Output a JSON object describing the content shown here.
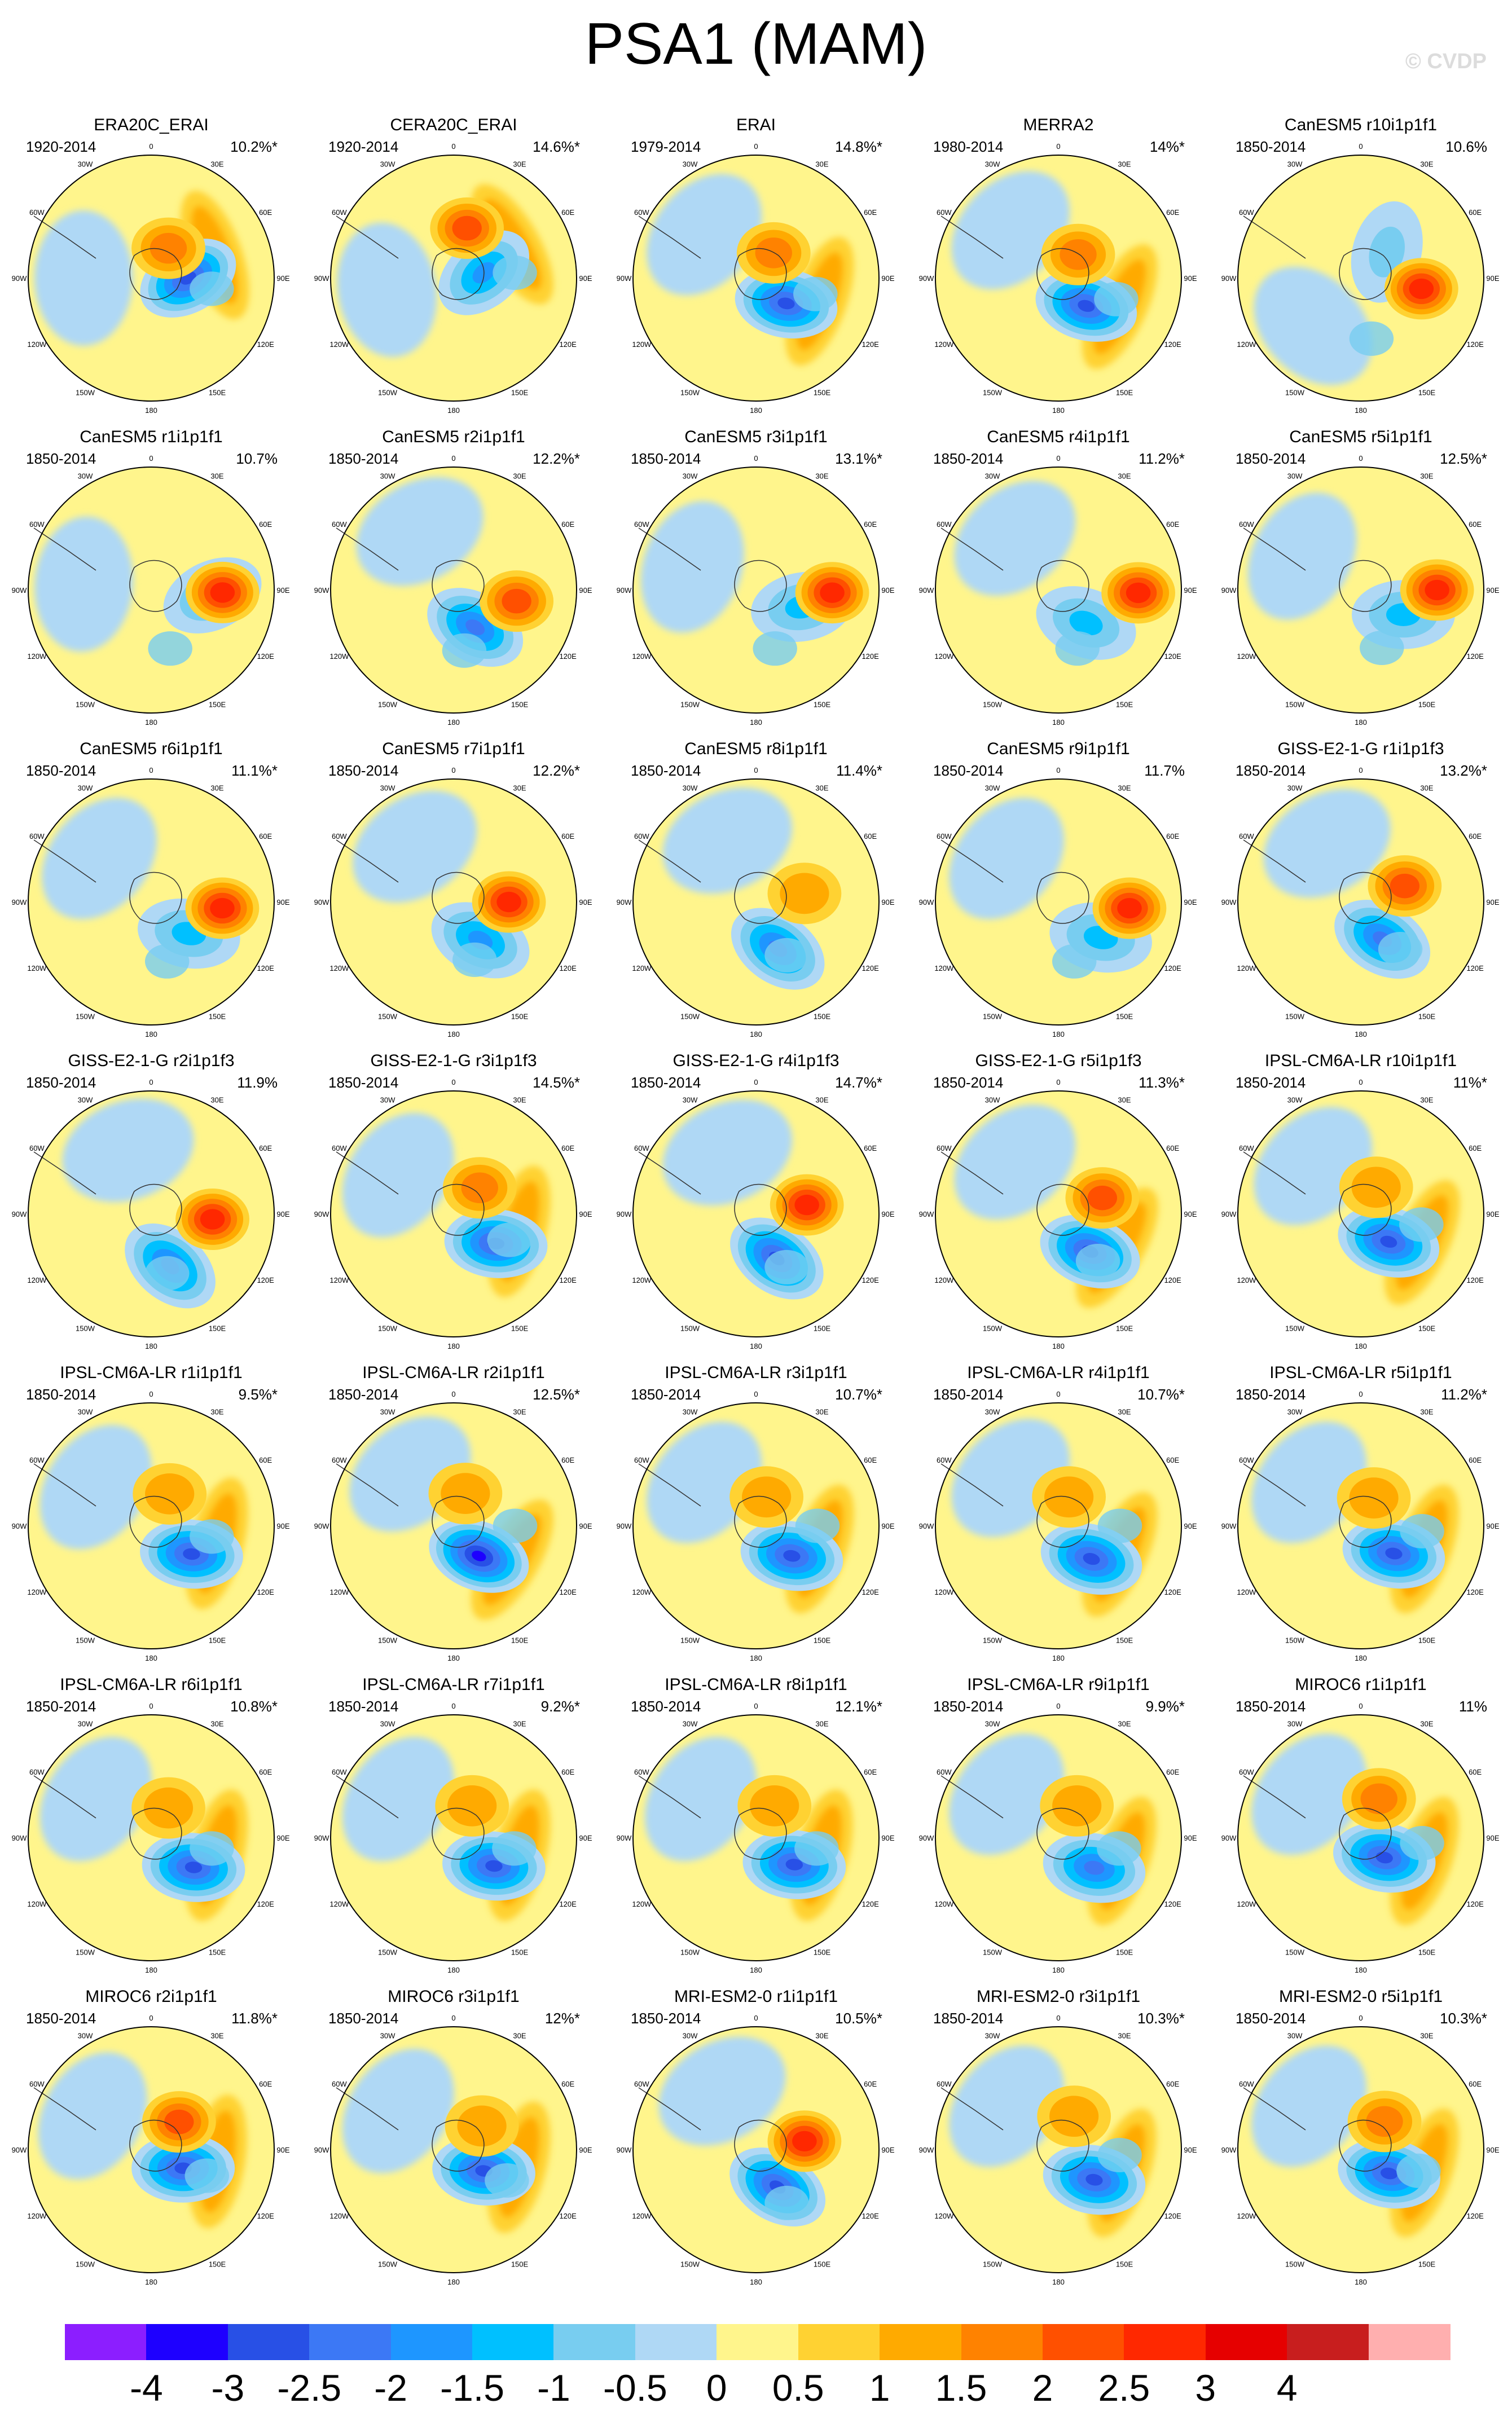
{
  "title": "PSA1 (MAM)",
  "copyright": "© CVDP",
  "map_labels": {
    "top": "0",
    "bottom": "180",
    "left_upper": "60W",
    "left_mid": "90W",
    "left_lower": "120W",
    "right_upper": "60E",
    "right_mid": "90E",
    "right_lower": "120E",
    "top_left": "30W",
    "top_right": "30E",
    "bottom_left": "150W",
    "bottom_right": "150E"
  },
  "panels": [
    {
      "title": "ERA20C_ERAI",
      "years": "1920-2014",
      "pct": "10.2%*",
      "lowA": 90,
      "lowR": 0.3,
      "lowI": 0.85,
      "hiA": 30,
      "hiR": 0.28,
      "hiI": 0.55,
      "arc": true
    },
    {
      "title": "CERA20C_ERAI",
      "years": "1920-2014",
      "pct": "14.6%*",
      "lowA": 80,
      "lowR": 0.25,
      "lowI": 0.55,
      "hiA": 15,
      "hiR": 0.42,
      "hiI": 0.7,
      "arc": true
    },
    {
      "title": "ERAI",
      "years": "1979-2014",
      "pct": "14.8%*",
      "lowA": 130,
      "lowR": 0.32,
      "lowI": 0.9,
      "hiA": 35,
      "hiR": 0.25,
      "hiI": 0.55,
      "arc": true
    },
    {
      "title": "MERRA2",
      "years": "1980-2014",
      "pct": "14%*",
      "lowA": 135,
      "lowR": 0.32,
      "lowI": 0.85,
      "hiA": 40,
      "hiR": 0.25,
      "hiI": 0.6,
      "arc": true
    },
    {
      "title": "CanESM5 r10i1p1f1",
      "years": "1850-2014",
      "pct": "10.6%",
      "lowA": 45,
      "lowR": 0.3,
      "lowI": 0.3,
      "hiA": 100,
      "hiR": 0.5,
      "hiI": 0.85,
      "arc": false
    },
    {
      "title": "CanESM5 r1i1p1f1",
      "years": "1850-2014",
      "pct": "10.7%",
      "lowA": 95,
      "lowR": 0.5,
      "lowI": 0.4,
      "hiA": 92,
      "hiR": 0.58,
      "hiI": 0.9,
      "arc": false
    },
    {
      "title": "CanESM5 r2i1p1f1",
      "years": "1850-2014",
      "pct": "12.2%*",
      "lowA": 150,
      "lowR": 0.35,
      "lowI": 0.65,
      "hiA": 100,
      "hiR": 0.52,
      "hiI": 0.7,
      "arc": false
    },
    {
      "title": "CanESM5 r3i1p1f1",
      "years": "1850-2014",
      "pct": "13.1%*",
      "lowA": 110,
      "lowR": 0.4,
      "lowI": 0.45,
      "hiA": 92,
      "hiR": 0.62,
      "hiI": 0.9,
      "arc": false
    },
    {
      "title": "CanESM5 r4i1p1f1",
      "years": "1850-2014",
      "pct": "11.2%*",
      "lowA": 140,
      "lowR": 0.35,
      "lowI": 0.4,
      "hiA": 92,
      "hiR": 0.65,
      "hiI": 0.85,
      "arc": false
    },
    {
      "title": "CanESM5 r5i1p1f1",
      "years": "1850-2014",
      "pct": "12.5%*",
      "lowA": 120,
      "lowR": 0.4,
      "lowI": 0.45,
      "hiA": 90,
      "hiR": 0.62,
      "hiI": 0.9,
      "arc": false
    },
    {
      "title": "CanESM5 r6i1p1f1",
      "years": "1850-2014",
      "pct": "11.1%*",
      "lowA": 130,
      "lowR": 0.4,
      "lowI": 0.45,
      "hiA": 95,
      "hiR": 0.58,
      "hiI": 0.9,
      "arc": false
    },
    {
      "title": "CanESM5 r7i1p1f1",
      "years": "1850-2014",
      "pct": "12.2%*",
      "lowA": 145,
      "lowR": 0.38,
      "lowI": 0.55,
      "hiA": 90,
      "hiR": 0.45,
      "hiI": 0.85,
      "arc": false
    },
    {
      "title": "CanESM5 r8i1p1f1",
      "years": "1850-2014",
      "pct": "11.4%*",
      "lowA": 155,
      "lowR": 0.42,
      "lowI": 0.65,
      "hiA": 80,
      "hiR": 0.4,
      "hiI": 0.45,
      "arc": false
    },
    {
      "title": "CanESM5 r9i1p1f1",
      "years": "1850-2014",
      "pct": "11.7%",
      "lowA": 130,
      "lowR": 0.45,
      "lowI": 0.45,
      "hiA": 95,
      "hiR": 0.58,
      "hiI": 0.9,
      "arc": false
    },
    {
      "title": "GISS-E2-1-G r1i1p1f3",
      "years": "1850-2014",
      "pct": "13.2%*",
      "lowA": 150,
      "lowR": 0.35,
      "lowI": 0.7,
      "hiA": 70,
      "hiR": 0.38,
      "hiI": 0.75,
      "arc": false
    },
    {
      "title": "GISS-E2-1-G r2i1p1f3",
      "years": "1850-2014",
      "pct": "11.9%",
      "lowA": 160,
      "lowR": 0.45,
      "lowI": 0.75,
      "hiA": 95,
      "hiR": 0.5,
      "hiI": 0.9,
      "arc": false
    },
    {
      "title": "GISS-E2-1-G r3i1p1f3",
      "years": "1850-2014",
      "pct": "14.5%*",
      "lowA": 125,
      "lowR": 0.42,
      "lowI": 0.85,
      "hiA": 45,
      "hiR": 0.3,
      "hiI": 0.6,
      "arc": true
    },
    {
      "title": "GISS-E2-1-G r4i1p1f3",
      "years": "1850-2014",
      "pct": "14.7%*",
      "lowA": 155,
      "lowR": 0.4,
      "lowI": 0.8,
      "hiA": 80,
      "hiR": 0.42,
      "hiI": 0.85,
      "arc": false
    },
    {
      "title": "GISS-E2-1-G r5i1p1f3",
      "years": "1850-2014",
      "pct": "11.3%*",
      "lowA": 140,
      "lowR": 0.4,
      "lowI": 0.8,
      "hiA": 70,
      "hiR": 0.38,
      "hiI": 0.75,
      "arc": true
    },
    {
      "title": "IPSL-CM6A-LR r10i1p1f1",
      "years": "1850-2014",
      "pct": "11%*",
      "lowA": 135,
      "lowR": 0.32,
      "lowI": 0.9,
      "hiA": 30,
      "hiR": 0.25,
      "hiI": 0.4,
      "arc": true
    },
    {
      "title": "IPSL-CM6A-LR r1i1p1f1",
      "years": "1850-2014",
      "pct": "9.5%*",
      "lowA": 125,
      "lowR": 0.4,
      "lowI": 0.8,
      "hiA": 30,
      "hiR": 0.3,
      "hiI": 0.4,
      "arc": true
    },
    {
      "title": "IPSL-CM6A-LR r2i1p1f1",
      "years": "1850-2014",
      "pct": "12.5%*",
      "lowA": 140,
      "lowR": 0.32,
      "lowI": 0.95,
      "hiA": 20,
      "hiR": 0.28,
      "hiI": 0.45,
      "arc": true
    },
    {
      "title": "IPSL-CM6A-LR r3i1p1f1",
      "years": "1850-2014",
      "pct": "10.7%*",
      "lowA": 130,
      "lowR": 0.38,
      "lowI": 0.8,
      "hiA": 20,
      "hiR": 0.25,
      "hiI": 0.4,
      "arc": true
    },
    {
      "title": "IPSL-CM6A-LR r4i1p1f1",
      "years": "1850-2014",
      "pct": "10.7%*",
      "lowA": 135,
      "lowR": 0.38,
      "lowI": 0.8,
      "hiA": 20,
      "hiR": 0.25,
      "hiI": 0.4,
      "arc": true
    },
    {
      "title": "IPSL-CM6A-LR r5i1p1f1",
      "years": "1850-2014",
      "pct": "11.2%*",
      "lowA": 130,
      "lowR": 0.35,
      "lowI": 0.85,
      "hiA": 25,
      "hiR": 0.25,
      "hiI": 0.4,
      "arc": true
    },
    {
      "title": "IPSL-CM6A-LR r6i1p1f1",
      "years": "1850-2014",
      "pct": "10.8%*",
      "lowA": 125,
      "lowR": 0.42,
      "lowI": 0.85,
      "hiA": 30,
      "hiR": 0.28,
      "hiI": 0.4,
      "arc": true
    },
    {
      "title": "IPSL-CM6A-LR r7i1p1f1",
      "years": "1850-2014",
      "pct": "9.2%*",
      "lowA": 125,
      "lowR": 0.4,
      "lowI": 0.8,
      "hiA": 30,
      "hiR": 0.3,
      "hiI": 0.4,
      "arc": true
    },
    {
      "title": "IPSL-CM6A-LR r8i1p1f1",
      "years": "1850-2014",
      "pct": "12.1%*",
      "lowA": 125,
      "lowR": 0.38,
      "lowI": 0.8,
      "hiA": 30,
      "hiR": 0.3,
      "hiI": 0.4,
      "arc": true
    },
    {
      "title": "IPSL-CM6A-LR r9i1p1f1",
      "years": "1850-2014",
      "pct": "9.9%*",
      "lowA": 130,
      "lowR": 0.38,
      "lowI": 0.75,
      "hiA": 30,
      "hiR": 0.3,
      "hiI": 0.4,
      "arc": true
    },
    {
      "title": "MIROC6 r1i1p1f1",
      "years": "1850-2014",
      "pct": "11%",
      "lowA": 130,
      "lowR": 0.25,
      "lowI": 0.8,
      "hiA": 25,
      "hiR": 0.35,
      "hiI": 0.6,
      "arc": true
    },
    {
      "title": "MIROC6 r2i1p1f1",
      "years": "1850-2014",
      "pct": "11.8%*",
      "lowA": 120,
      "lowR": 0.3,
      "lowI": 0.85,
      "hiA": 45,
      "hiR": 0.32,
      "hiI": 0.7,
      "arc": true
    },
    {
      "title": "MIROC6 r3i1p1f1",
      "years": "1850-2014",
      "pct": "12%*",
      "lowA": 125,
      "lowR": 0.3,
      "lowI": 0.85,
      "hiA": 50,
      "hiR": 0.3,
      "hiI": 0.45,
      "arc": true
    },
    {
      "title": "MRI-ESM2-0 r1i1p1f1",
      "years": "1850-2014",
      "pct": "10.5%*",
      "lowA": 150,
      "lowR": 0.35,
      "lowI": 0.8,
      "hiA": 80,
      "hiR": 0.4,
      "hiI": 0.9,
      "arc": false
    },
    {
      "title": "MRI-ESM2-0 r3i1p1f1",
      "years": "1850-2014",
      "pct": "10.3%*",
      "lowA": 130,
      "lowR": 0.38,
      "lowI": 0.9,
      "hiA": 25,
      "hiR": 0.3,
      "hiI": 0.45,
      "arc": true
    },
    {
      "title": "MRI-ESM2-0 r5i1p1f1",
      "years": "1850-2014",
      "pct": "10.3%*",
      "lowA": 130,
      "lowR": 0.3,
      "lowI": 0.85,
      "hiA": 40,
      "hiR": 0.3,
      "hiI": 0.55,
      "arc": true
    }
  ],
  "colorbar": {
    "colors": [
      "#8c1eff",
      "#1e00ff",
      "#2850e6",
      "#3c78f5",
      "#1e96ff",
      "#00c0ff",
      "#78cdf0",
      "#afd8f5",
      "#fff58c",
      "#ffd232",
      "#ffaa00",
      "#ff8200",
      "#ff5000",
      "#ff2800",
      "#e60000",
      "#c81e1e",
      "#ffafaf"
    ],
    "labels": [
      "-4",
      "-3",
      "-2.5",
      "-2",
      "-1.5",
      "-1",
      "-0.5",
      "0",
      "0.5",
      "1",
      "1.5",
      "2",
      "2.5",
      "3",
      "4"
    ]
  }
}
